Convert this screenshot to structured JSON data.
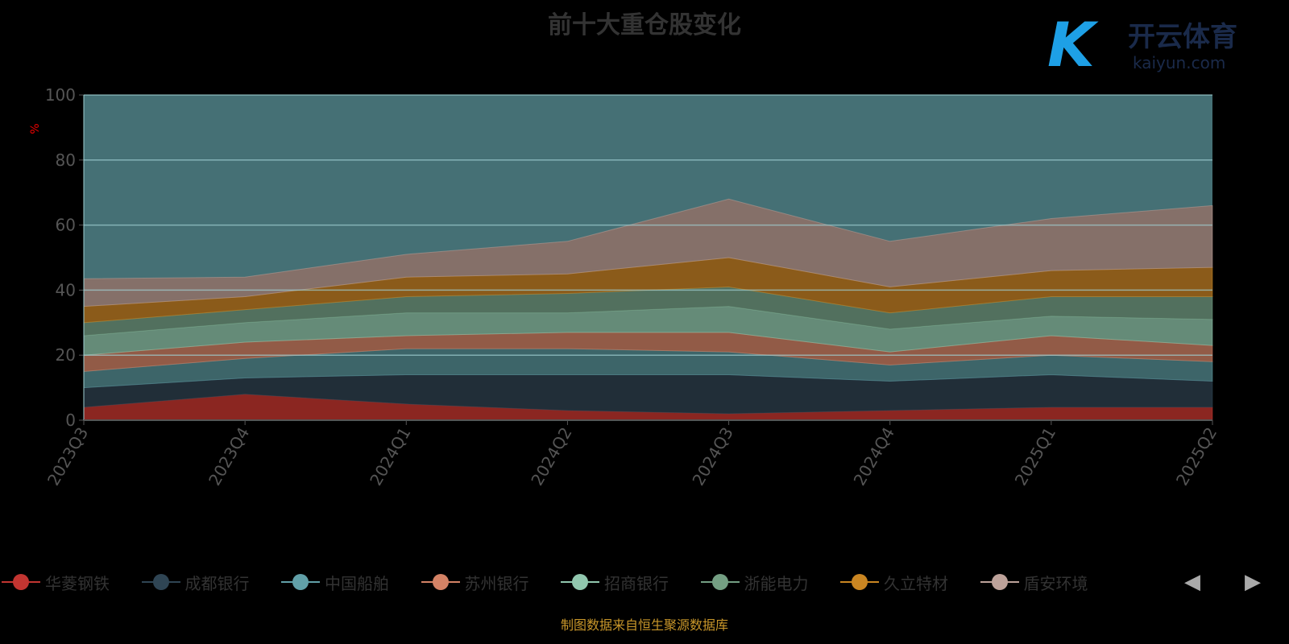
{
  "chart_data": {
    "type": "area",
    "stacked": true,
    "title": "前十大重仓股变化",
    "ylabel": "%",
    "xlabel": "",
    "ylim": [
      0,
      100
    ],
    "yticks": [
      "0",
      "20",
      "40",
      "60",
      "80",
      "100"
    ],
    "categories": [
      "2023Q3",
      "2023Q4",
      "2024Q1",
      "2024Q2",
      "2024Q3",
      "2024Q4",
      "2025Q1",
      "2025Q2"
    ],
    "grid": true,
    "legend_position": "bottom",
    "plot_background": "#457075",
    "series": [
      {
        "name": "华菱钢铁",
        "color": "#c23531",
        "fill": "#8B2621",
        "values": [
          4,
          8,
          5,
          3,
          2,
          3,
          4,
          4
        ]
      },
      {
        "name": "成都银行",
        "color": "#2f4554",
        "fill": "#212E38",
        "values": [
          6,
          5,
          9,
          11,
          12,
          9,
          10,
          8
        ]
      },
      {
        "name": "中国船舶",
        "color": "#61a0a8",
        "fill": "#3d6569",
        "values": [
          5,
          6,
          8,
          8,
          7,
          5,
          6,
          6
        ]
      },
      {
        "name": "苏州银行",
        "color": "#d48265",
        "fill": "#925B47",
        "values": [
          5,
          5,
          4,
          5,
          6,
          4,
          6,
          5
        ]
      },
      {
        "name": "招商银行",
        "color": "#91c7ae",
        "fill": "#658B78",
        "values": [
          6,
          6,
          7,
          6,
          8,
          7,
          6,
          8
        ]
      },
      {
        "name": "浙能电力",
        "color": "#749f83",
        "fill": "#52705E",
        "values": [
          4,
          4,
          5,
          6,
          6,
          5,
          6,
          7
        ]
      },
      {
        "name": "久立特材",
        "color": "#ca8622",
        "fill": "#8B5B1A",
        "values": [
          5,
          4,
          6,
          6,
          9,
          8,
          8,
          9
        ]
      },
      {
        "name": "盾安环境",
        "color": "#bda29a",
        "fill": "#857069",
        "values": [
          8.5,
          6,
          7,
          10,
          18,
          14,
          16,
          19
        ]
      }
    ]
  },
  "footer": {
    "source": "制图数据来自恒生聚源数据库"
  },
  "legend_pager": {
    "prev": "◀",
    "next": "▶"
  },
  "watermark": {
    "mark": "K",
    "cn": "开云体育",
    "en": "kaiyun.com"
  }
}
